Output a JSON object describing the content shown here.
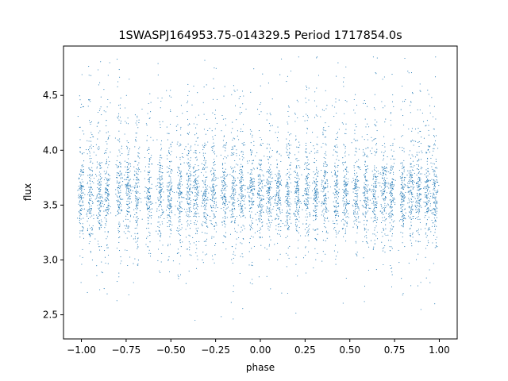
{
  "chart_data": {
    "type": "scatter",
    "title": "1SWASPJ164953.75-014329.5 Period 1717854.0s",
    "xlabel": "phase",
    "ylabel": "flux",
    "xlim": [
      -1.1,
      1.1
    ],
    "ylim": [
      2.28,
      4.95
    ],
    "xticks": [
      -1.0,
      -0.75,
      -0.5,
      -0.25,
      0.0,
      0.25,
      0.5,
      0.75,
      1.0
    ],
    "xtick_labels": [
      "−1.00",
      "−0.75",
      "−0.50",
      "−0.25",
      "0.00",
      "0.25",
      "0.50",
      "0.75",
      "1.00"
    ],
    "yticks": [
      2.5,
      3.0,
      3.5,
      4.0,
      4.5
    ],
    "ytick_labels": [
      "2.5",
      "3.0",
      "3.5",
      "4.0",
      "4.5"
    ],
    "grid": false,
    "legend": "none",
    "marker_color": "#1f77b4",
    "series": [
      {
        "cluster_phases": [
          -1.0,
          -0.95,
          -0.9,
          -0.855,
          -0.79,
          -0.74,
          -0.69,
          -0.625,
          -0.56,
          -0.505,
          -0.45,
          -0.4,
          -0.36,
          -0.31,
          -0.26,
          -0.2,
          -0.15,
          -0.105,
          -0.05,
          0.0,
          0.05,
          0.1,
          0.155,
          0.205,
          0.26,
          0.31,
          0.36,
          0.425,
          0.475,
          0.535,
          0.59,
          0.64,
          0.69,
          0.735,
          0.795,
          0.84,
          0.885,
          0.935,
          0.975
        ],
        "median_flux": 3.6,
        "flux_spread": 0.18,
        "flux_range": [
          2.45,
          4.85
        ]
      }
    ]
  }
}
